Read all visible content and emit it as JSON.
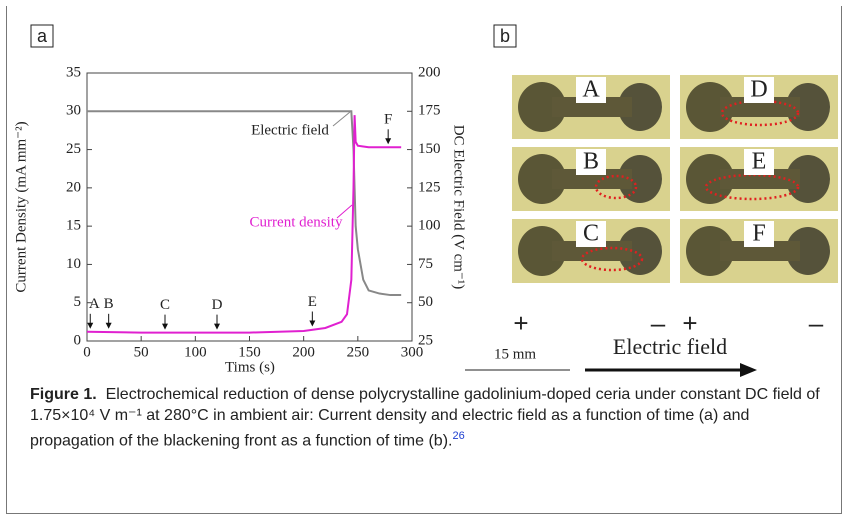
{
  "chart_data": {
    "type": "line",
    "panel_label": "a",
    "x_label": "Tims (s)",
    "y_label": "Current Density (mA mm⁻²)",
    "y2_label": "DC Electric Field (V cm⁻¹)",
    "x": [
      0,
      50,
      100,
      150,
      200,
      220,
      235,
      240,
      244,
      246,
      247,
      248,
      250,
      255,
      260,
      270,
      280,
      290
    ],
    "series": [
      {
        "name": "Current density",
        "color": "#e020d0",
        "values": [
          1.2,
          1.1,
          1.1,
          1.1,
          1.3,
          1.7,
          2.5,
          3.5,
          8,
          20,
          29.5,
          26,
          25.5,
          25.4,
          25.3,
          25.3,
          25.3,
          25.3
        ]
      },
      {
        "name": "Electric field",
        "color": "#888888",
        "axis": "y2",
        "values": [
          175,
          175,
          175,
          175,
          175,
          175,
          175,
          175,
          175,
          150,
          125,
          100,
          85,
          65,
          58,
          56,
          55,
          55
        ]
      }
    ],
    "xlim": [
      0,
      300
    ],
    "xticks": [
      0,
      50,
      100,
      150,
      200,
      250,
      300
    ],
    "ylim": [
      0,
      35
    ],
    "yticks": [
      0,
      5,
      10,
      15,
      20,
      25,
      30,
      35
    ],
    "y2lim": [
      25,
      200
    ],
    "y2ticks": [
      25,
      50,
      75,
      100,
      125,
      150,
      175,
      200
    ],
    "markers": [
      {
        "text": "A",
        "x": 3,
        "y": 1.2
      },
      {
        "text": "B",
        "x": 20,
        "y": 1.2
      },
      {
        "text": "C",
        "x": 72,
        "y": 1.1
      },
      {
        "text": "D",
        "x": 120,
        "y": 1.1
      },
      {
        "text": "E",
        "x": 208,
        "y": 1.5
      },
      {
        "text": "F",
        "x": 278,
        "y": 25.3
      }
    ]
  },
  "panel_b": {
    "label": "b",
    "photos": [
      "A",
      "D",
      "B",
      "E",
      "C",
      "F"
    ],
    "polarity": [
      "+",
      "–",
      "+",
      "–"
    ],
    "scale": "15 mm",
    "field": "Electric field"
  },
  "caption": {
    "label": "Figure 1.",
    "text": "Electrochemical reduction of dense polycrystalline gadolinium-doped ceria under constant DC field of 1.75×10⁴ V m⁻¹ at 280°C in ambient air: Current density and electric field as a function of time (a) and propagation of the blackening front as a function of time (b).",
    "ref": "26"
  }
}
